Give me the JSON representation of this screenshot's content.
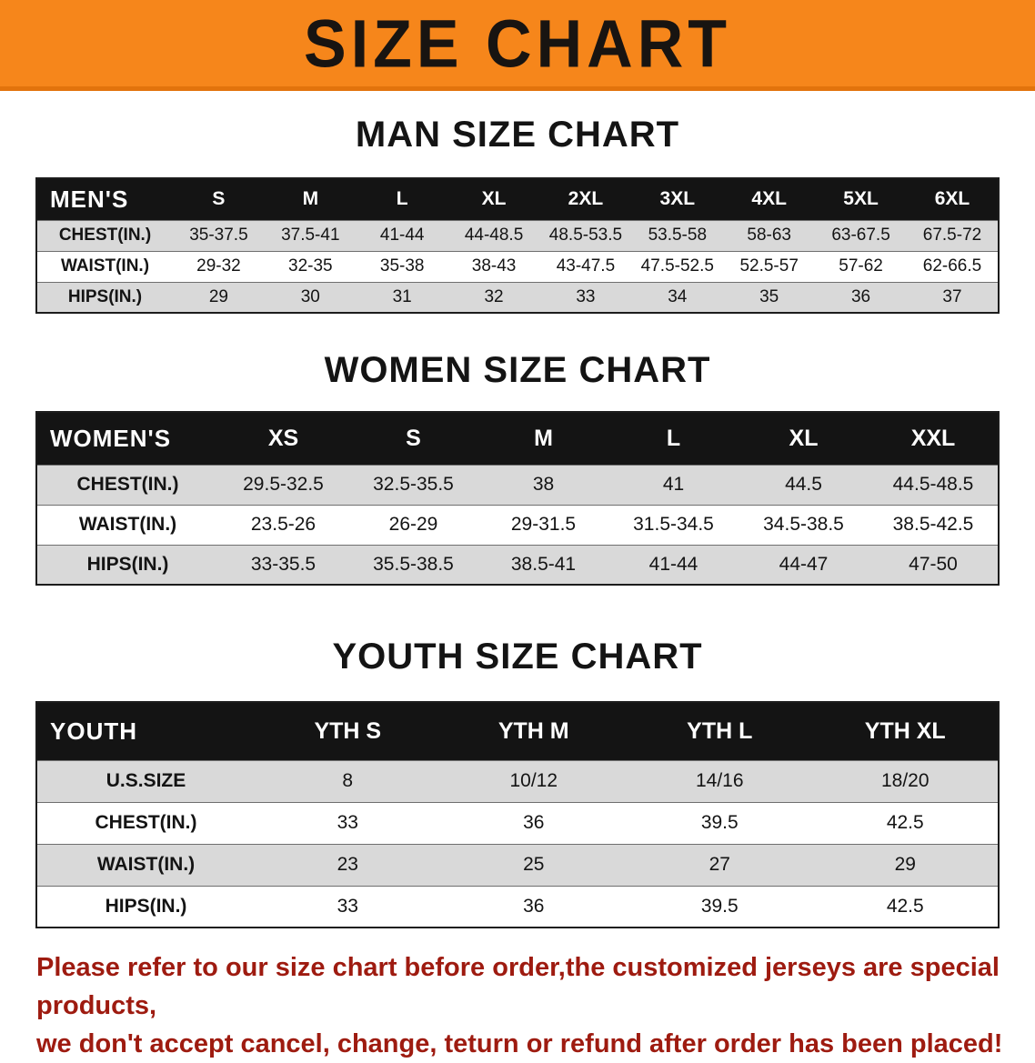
{
  "banner": {
    "title": "SIZE CHART"
  },
  "colors": {
    "banner_bg": "#F6861B",
    "banner_border": "#E2730C",
    "table_header_bg": "#141414",
    "row_stripe": "#D9D9D9",
    "footer_text": "#9E1B10"
  },
  "sections": [
    {
      "title": "MAN SIZE CHART",
      "header_label": "MEN'S",
      "columns": [
        "S",
        "M",
        "L",
        "XL",
        "2XL",
        "3XL",
        "4XL",
        "5XL",
        "6XL"
      ],
      "rows": [
        {
          "label": "CHEST(IN.)",
          "values": [
            "35-37.5",
            "37.5-41",
            "41-44",
            "44-48.5",
            "48.5-53.5",
            "53.5-58",
            "58-63",
            "63-67.5",
            "67.5-72"
          ]
        },
        {
          "label": "WAIST(IN.)",
          "values": [
            "29-32",
            "32-35",
            "35-38",
            "38-43",
            "43-47.5",
            "47.5-52.5",
            "52.5-57",
            "57-62",
            "62-66.5"
          ]
        },
        {
          "label": "HIPS(IN.)",
          "values": [
            "29",
            "30",
            "31",
            "32",
            "33",
            "34",
            "35",
            "36",
            "37"
          ]
        }
      ]
    },
    {
      "title": "WOMEN SIZE CHART",
      "header_label": "WOMEN'S",
      "columns": [
        "XS",
        "S",
        "M",
        "L",
        "XL",
        "XXL"
      ],
      "rows": [
        {
          "label": "CHEST(IN.)",
          "values": [
            "29.5-32.5",
            "32.5-35.5",
            "38",
            "41",
            "44.5",
            "44.5-48.5"
          ]
        },
        {
          "label": "WAIST(IN.)",
          "values": [
            "23.5-26",
            "26-29",
            "29-31.5",
            "31.5-34.5",
            "34.5-38.5",
            "38.5-42.5"
          ]
        },
        {
          "label": "HIPS(IN.)",
          "values": [
            "33-35.5",
            "35.5-38.5",
            "38.5-41",
            "41-44",
            "44-47",
            "47-50"
          ]
        }
      ]
    },
    {
      "title": "YOUTH SIZE CHART",
      "header_label": "YOUTH",
      "columns": [
        "YTH S",
        "YTH M",
        "YTH L",
        "YTH XL"
      ],
      "rows": [
        {
          "label": "U.S.SIZE",
          "values": [
            "8",
            "10/12",
            "14/16",
            "18/20"
          ]
        },
        {
          "label": "CHEST(IN.)",
          "values": [
            "33",
            "36",
            "39.5",
            "42.5"
          ]
        },
        {
          "label": "WAIST(IN.)",
          "values": [
            "23",
            "25",
            "27",
            "29"
          ]
        },
        {
          "label": "HIPS(IN.)",
          "values": [
            "33",
            "36",
            "39.5",
            "42.5"
          ]
        }
      ]
    }
  ],
  "footer": {
    "line1": "Please refer to our size chart before order,the customized jerseys are special products,",
    "line2": "we don't accept cancel, change, teturn or refund after order has been placed!"
  }
}
